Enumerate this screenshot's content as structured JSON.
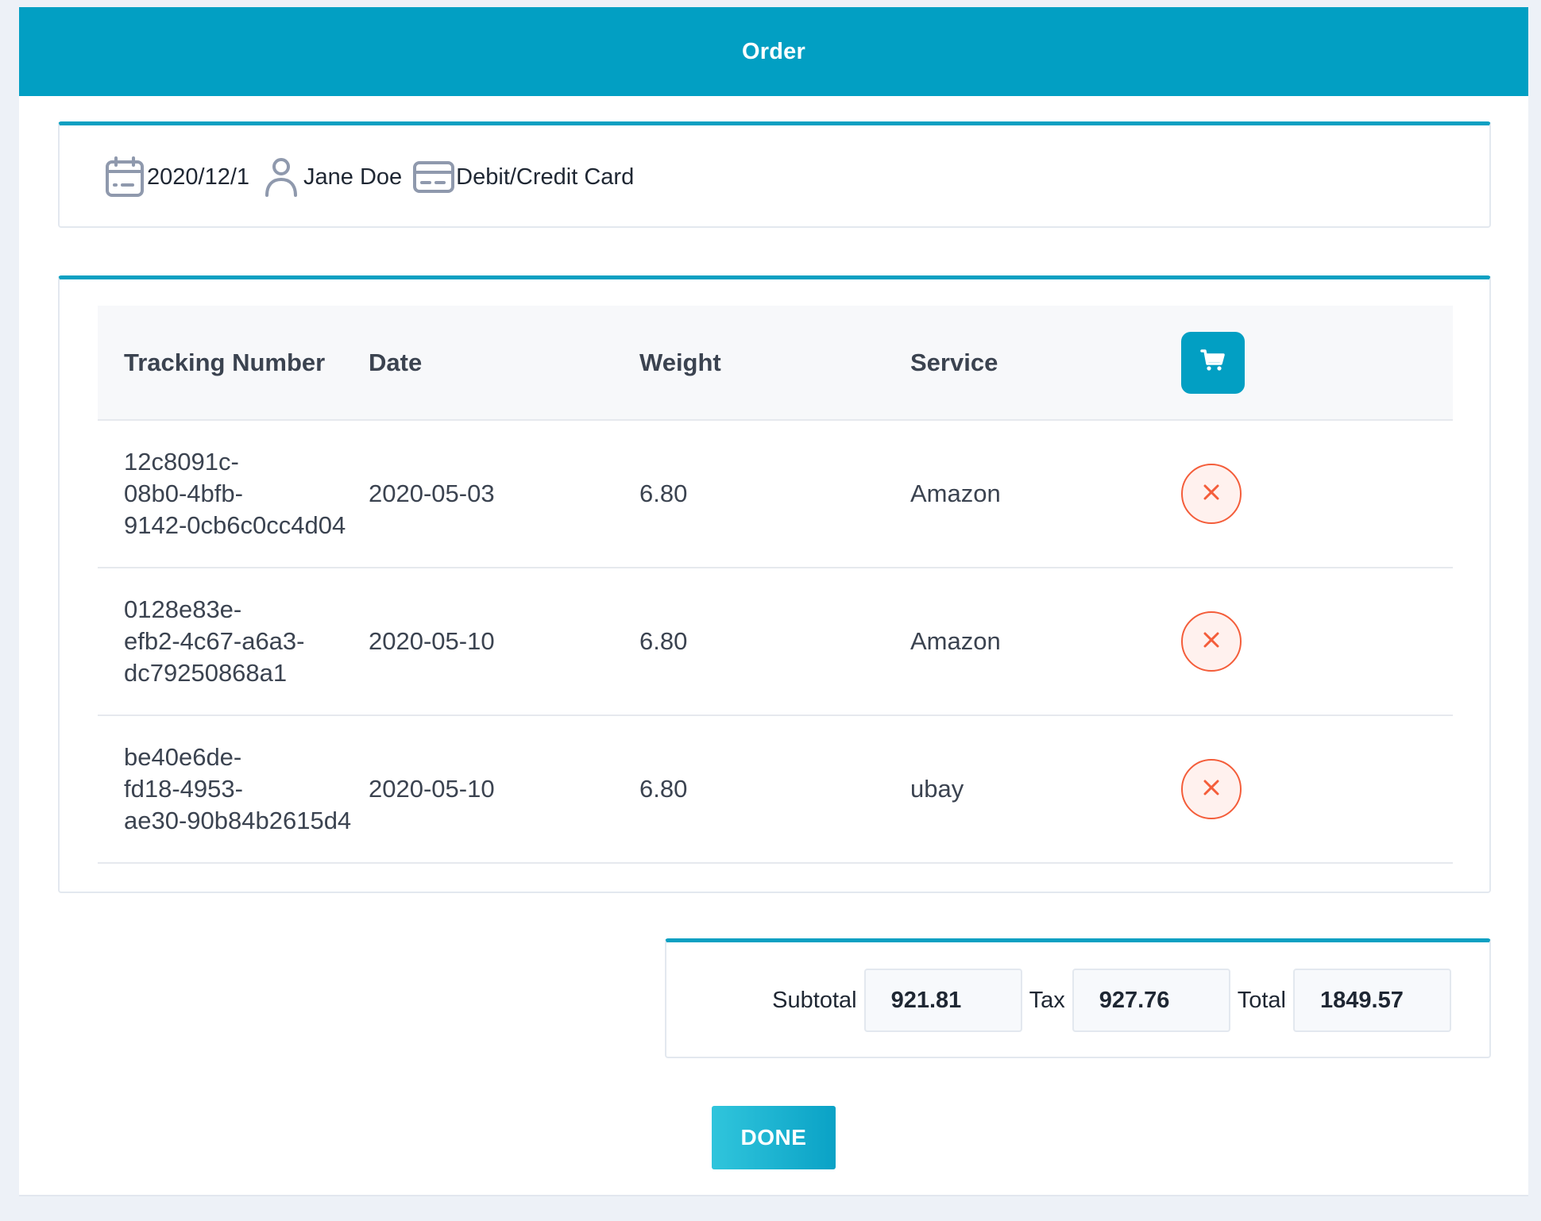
{
  "modal": {
    "title": "Order"
  },
  "info": {
    "date": "2020/12/1",
    "customer": "Jane Doe",
    "payment": "Debit/Credit Card",
    "icons": [
      "calendar-icon",
      "user-icon",
      "credit-card-icon"
    ]
  },
  "table": {
    "headers": {
      "tracking": "Tracking Number",
      "date": "Date",
      "weight": "Weight",
      "service": "Service"
    },
    "header_action_icon": "cart-icon",
    "rows": [
      {
        "tracking_lines": [
          "12c8091c-",
          "08b0-4bfb-",
          "9142-0cb6c0cc4d04"
        ],
        "date": "2020-05-03",
        "weight": "6.80",
        "service": "Amazon",
        "action_icon": "close-icon"
      },
      {
        "tracking_lines": [
          "0128e83e-",
          "efb2-4c67-a6a3-",
          "dc79250868a1"
        ],
        "date": "2020-05-10",
        "weight": "6.80",
        "service": "Amazon",
        "action_icon": "close-icon"
      },
      {
        "tracking_lines": [
          "be40e6de-",
          "fd18-4953-",
          "ae30-90b84b2615d4"
        ],
        "date": "2020-05-10",
        "weight": "6.80",
        "service": "ubay",
        "action_icon": "close-icon"
      }
    ]
  },
  "totals": {
    "subtotal_label": "Subtotal",
    "subtotal": "921.81",
    "tax_label": "Tax",
    "tax": "927.76",
    "total_label": "Total",
    "total": "1849.57"
  },
  "actions": {
    "done_label": "DONE"
  },
  "colors": {
    "primary": "#029fc3",
    "danger": "#f45d3a",
    "background": "#edf1f7"
  }
}
